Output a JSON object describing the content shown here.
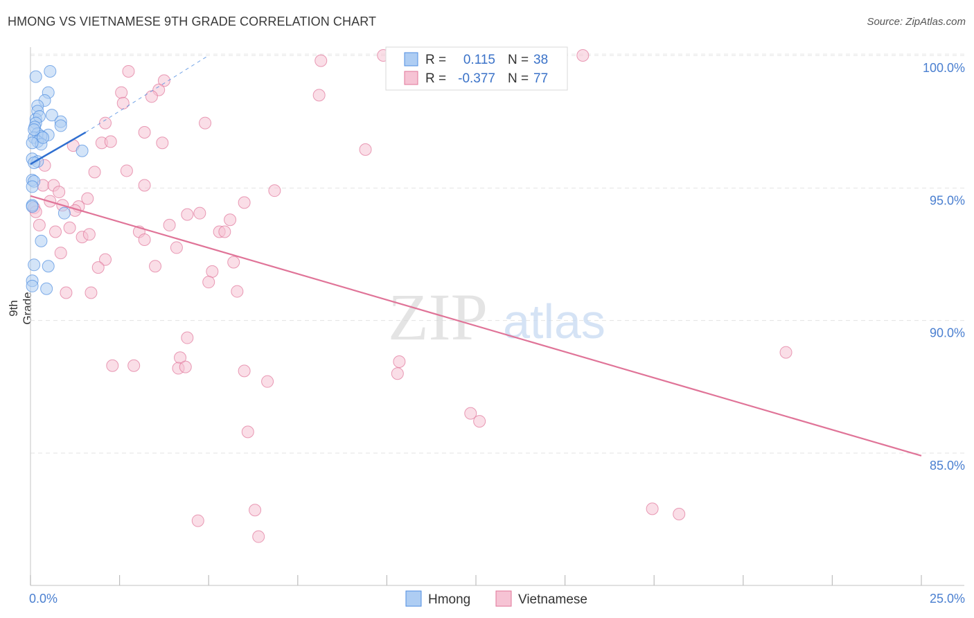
{
  "chart_data": {
    "type": "scatter",
    "title": "HMONG VS VIETNAMESE 9TH GRADE CORRELATION CHART",
    "source": "Source: ZipAtlas.com",
    "xlabel": "",
    "ylabel": "9th Grade",
    "xlim": [
      0,
      25
    ],
    "ylim": [
      80.5,
      101.0
    ],
    "x_tick_labels": [
      {
        "value": 0,
        "label": "0.0%"
      },
      {
        "value": 25,
        "label": "25.0%"
      }
    ],
    "y_tick_labels": [
      {
        "value": 100,
        "label": "100.0%"
      },
      {
        "value": 95,
        "label": "95.0%"
      },
      {
        "value": 90,
        "label": "90.0%"
      },
      {
        "value": 85,
        "label": "85.0%"
      }
    ],
    "x_minor_ticks": [
      0,
      2.5,
      5,
      7.5,
      10,
      12.5,
      15,
      17.5,
      20,
      22.5,
      25
    ],
    "watermark": {
      "zip": "ZIP",
      "atlas": "atlas"
    },
    "legend": {
      "position": "top-center",
      "rows": [
        {
          "name": "Hmong",
          "r_label": "R =",
          "r_value": "0.115",
          "n_label": "N =",
          "n_value": "38",
          "color": "#4f8de0"
        },
        {
          "name": "Vietnamese",
          "r_label": "R =",
          "r_value": "-0.377",
          "n_label": "N =",
          "n_value": "77",
          "color": "#e07498"
        }
      ]
    },
    "bottom_legend": [
      {
        "name": "Hmong",
        "color": "#4f8de0"
      },
      {
        "name": "Vietnamese",
        "color": "#e07498"
      }
    ],
    "series": [
      {
        "name": "Hmong",
        "color": "#4f8de0",
        "fill": "#aecdf3",
        "trend": {
          "x1": 0.0,
          "y1": 95.9,
          "x2": 1.55,
          "y2": 97.1,
          "dash_x2": 5.0,
          "dash_y2": 100.0
        },
        "points": [
          [
            0.15,
            99.2
          ],
          [
            0.55,
            99.4
          ],
          [
            0.5,
            98.6
          ],
          [
            0.4,
            98.3
          ],
          [
            0.2,
            98.1
          ],
          [
            0.2,
            97.9
          ],
          [
            0.15,
            97.6
          ],
          [
            0.25,
            97.7
          ],
          [
            0.6,
            97.75
          ],
          [
            0.85,
            97.5
          ],
          [
            0.15,
            97.45
          ],
          [
            0.12,
            97.3
          ],
          [
            0.85,
            97.35
          ],
          [
            0.2,
            97.05
          ],
          [
            0.5,
            97.0
          ],
          [
            0.3,
            96.95
          ],
          [
            0.1,
            96.9
          ],
          [
            0.2,
            96.75
          ],
          [
            0.3,
            96.65
          ],
          [
            0.05,
            96.7
          ],
          [
            1.45,
            96.4
          ],
          [
            0.05,
            96.1
          ],
          [
            0.2,
            96.0
          ],
          [
            0.1,
            95.95
          ],
          [
            0.05,
            95.3
          ],
          [
            0.1,
            95.25
          ],
          [
            0.05,
            95.05
          ],
          [
            0.05,
            94.35
          ],
          [
            0.05,
            94.3
          ],
          [
            0.95,
            94.05
          ],
          [
            0.3,
            93.0
          ],
          [
            0.1,
            92.1
          ],
          [
            0.5,
            92.05
          ],
          [
            0.05,
            91.5
          ],
          [
            0.05,
            91.3
          ],
          [
            0.45,
            91.2
          ],
          [
            0.1,
            97.2
          ],
          [
            0.35,
            96.9
          ]
        ]
      },
      {
        "name": "Vietnamese",
        "color": "#e07498",
        "fill": "#f6c3d4",
        "trend": {
          "x1": 0.0,
          "y1": 94.7,
          "x2": 25.0,
          "y2": 84.9
        },
        "points": [
          [
            9.9,
            100.0
          ],
          [
            15.5,
            100.0
          ],
          [
            8.15,
            99.8
          ],
          [
            2.75,
            99.4
          ],
          [
            3.75,
            99.05
          ],
          [
            2.55,
            98.6
          ],
          [
            3.6,
            98.7
          ],
          [
            8.1,
            98.5
          ],
          [
            3.4,
            98.45
          ],
          [
            2.6,
            98.2
          ],
          [
            2.1,
            97.45
          ],
          [
            4.9,
            97.45
          ],
          [
            3.2,
            97.1
          ],
          [
            1.2,
            96.6
          ],
          [
            3.7,
            96.7
          ],
          [
            2.0,
            96.7
          ],
          [
            2.25,
            96.75
          ],
          [
            9.4,
            96.45
          ],
          [
            0.4,
            95.85
          ],
          [
            1.8,
            95.6
          ],
          [
            2.7,
            95.65
          ],
          [
            0.35,
            95.1
          ],
          [
            0.65,
            95.1
          ],
          [
            3.2,
            95.1
          ],
          [
            6.85,
            94.9
          ],
          [
            0.8,
            94.85
          ],
          [
            1.6,
            94.6
          ],
          [
            6.0,
            94.45
          ],
          [
            0.9,
            94.35
          ],
          [
            0.55,
            94.5
          ],
          [
            0.1,
            94.25
          ],
          [
            0.15,
            94.1
          ],
          [
            1.35,
            94.3
          ],
          [
            1.25,
            94.15
          ],
          [
            4.4,
            94.0
          ],
          [
            4.75,
            94.05
          ],
          [
            5.6,
            93.8
          ],
          [
            1.1,
            93.5
          ],
          [
            3.9,
            93.6
          ],
          [
            0.25,
            93.6
          ],
          [
            0.7,
            93.35
          ],
          [
            3.05,
            93.35
          ],
          [
            5.3,
            93.35
          ],
          [
            5.45,
            93.35
          ],
          [
            1.45,
            93.15
          ],
          [
            1.65,
            93.25
          ],
          [
            3.2,
            93.05
          ],
          [
            4.1,
            92.75
          ],
          [
            0.85,
            92.55
          ],
          [
            2.1,
            92.3
          ],
          [
            5.7,
            92.2
          ],
          [
            3.5,
            92.05
          ],
          [
            1.9,
            92.0
          ],
          [
            5.1,
            91.85
          ],
          [
            5.0,
            91.45
          ],
          [
            5.8,
            91.1
          ],
          [
            1.0,
            91.05
          ],
          [
            1.7,
            91.05
          ],
          [
            21.2,
            88.8
          ],
          [
            4.4,
            89.35
          ],
          [
            4.2,
            88.6
          ],
          [
            2.3,
            88.3
          ],
          [
            2.9,
            88.3
          ],
          [
            4.15,
            88.2
          ],
          [
            4.35,
            88.25
          ],
          [
            6.0,
            88.1
          ],
          [
            10.35,
            88.45
          ],
          [
            10.3,
            88.0
          ],
          [
            6.65,
            87.7
          ],
          [
            12.35,
            86.5
          ],
          [
            12.6,
            86.2
          ],
          [
            6.1,
            85.8
          ],
          [
            17.45,
            82.9
          ],
          [
            18.2,
            82.7
          ],
          [
            4.7,
            82.45
          ],
          [
            6.3,
            82.85
          ],
          [
            6.4,
            81.85
          ]
        ]
      }
    ]
  }
}
